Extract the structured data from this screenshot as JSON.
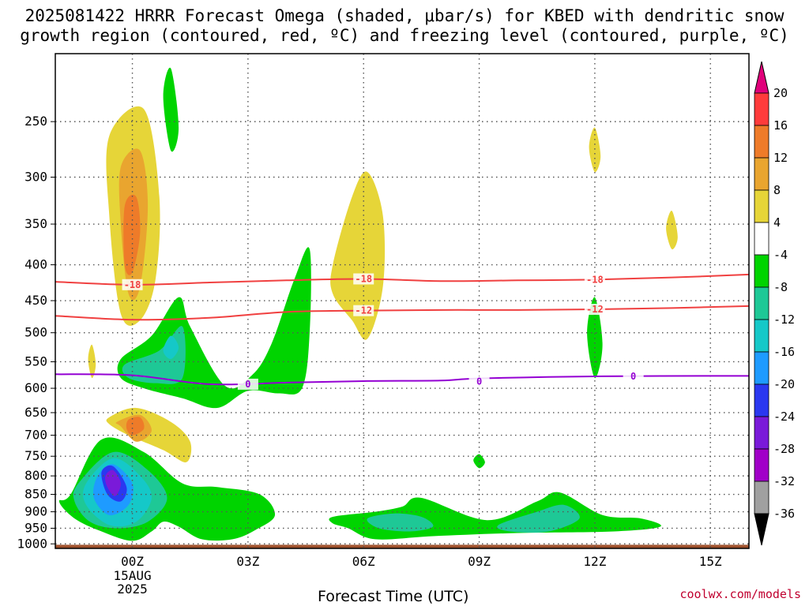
{
  "title": {
    "line1": "2025081422 HRRR Forecast Omega (shaded, μbar/s) for KBED with dendritic snow",
    "line2": "growth region (contoured, red, ºC) and freezing level (contoured, purple, ºC)"
  },
  "credit": "coolwx.com/models",
  "chart_data": {
    "type": "heatmap",
    "title": "2025081422 HRRR Forecast Omega (shaded, μbar/s) for KBED with dendritic snow growth region (contoured, red, ºC) and freezing level (contoured, purple, ºC)",
    "xlabel": "Forecast Time (UTC)",
    "ylabel": "",
    "x_ticks": [
      "00Z",
      "03Z",
      "06Z",
      "09Z",
      "12Z",
      "15Z"
    ],
    "x_tick_hours": [
      2,
      5,
      8,
      11,
      14,
      17
    ],
    "x_date_label": [
      "15AUG",
      "2025"
    ],
    "xlim_hours": [
      0,
      18
    ],
    "y_ticks": [
      250,
      300,
      350,
      400,
      450,
      500,
      550,
      600,
      650,
      700,
      750,
      800,
      850,
      900,
      950,
      1000
    ],
    "ylim_hpa": [
      1015,
      200
    ],
    "y_scale": "log-pressure",
    "grid": "dotted",
    "colorbar": {
      "ticks": [
        "20",
        "16",
        "12",
        "8",
        "4",
        "-4",
        "-8",
        "-12",
        "-16",
        "-20",
        "-24",
        "-28",
        "-32",
        "-36"
      ],
      "bins": [
        {
          "lo": 16,
          "hi": 20,
          "color": "#ff3b3b"
        },
        {
          "lo": 12,
          "hi": 16,
          "color": "#ee7b29"
        },
        {
          "lo": 8,
          "hi": 12,
          "color": "#e9a52f"
        },
        {
          "lo": 4,
          "hi": 8,
          "color": "#e6d538"
        },
        {
          "lo": -4,
          "hi": 4,
          "color": "#ffffff"
        },
        {
          "lo": -8,
          "hi": -4,
          "color": "#00d400"
        },
        {
          "lo": -12,
          "hi": -8,
          "color": "#1ec896"
        },
        {
          "lo": -16,
          "hi": -12,
          "color": "#15c8c8"
        },
        {
          "lo": -20,
          "hi": -16,
          "color": "#1e9bff"
        },
        {
          "lo": -24,
          "hi": -20,
          "color": "#2a38f0"
        },
        {
          "lo": -28,
          "hi": -24,
          "color": "#7a1ad9"
        },
        {
          "lo": -32,
          "hi": -28,
          "color": "#a100c8"
        },
        {
          "lo": -36,
          "hi": -32,
          "color": "#a0a0a0"
        }
      ],
      "over_color": "#e0007a",
      "under_color": "#000000"
    },
    "contours": [
      {
        "name": "-18",
        "color": "#f04040",
        "points": [
          [
            0,
            423
          ],
          [
            2,
            427
          ],
          [
            4,
            424
          ],
          [
            6,
            421
          ],
          [
            8,
            419
          ],
          [
            10,
            422
          ],
          [
            12,
            421
          ],
          [
            14,
            420
          ],
          [
            16,
            417
          ],
          [
            18,
            413
          ]
        ],
        "labels": [
          {
            "h": 2,
            "p": 427
          },
          {
            "h": 8,
            "p": 419
          },
          {
            "h": 14,
            "p": 420
          }
        ]
      },
      {
        "name": "-12",
        "color": "#f04040",
        "points": [
          [
            0,
            473
          ],
          [
            2,
            479
          ],
          [
            4,
            476
          ],
          [
            6,
            467
          ],
          [
            8,
            465
          ],
          [
            10,
            464
          ],
          [
            12,
            464
          ],
          [
            14,
            463
          ],
          [
            16,
            461
          ],
          [
            18,
            458
          ]
        ],
        "labels": [
          {
            "h": 8,
            "p": 465
          },
          {
            "h": 14,
            "p": 463
          }
        ]
      },
      {
        "name": "0",
        "color": "#9400d3",
        "points": [
          [
            0,
            573
          ],
          [
            2,
            575
          ],
          [
            4,
            592
          ],
          [
            6,
            589
          ],
          [
            8,
            586
          ],
          [
            10,
            585
          ],
          [
            11,
            581
          ],
          [
            14,
            577
          ],
          [
            18,
            576
          ]
        ],
        "labels": [
          {
            "h": 5,
            "p": 592
          },
          {
            "h": 11,
            "p": 587
          },
          {
            "h": 15,
            "p": 577
          }
        ]
      }
    ],
    "omega_features": [
      {
        "desc": "upper updraft 00Z",
        "levels": [
          {
            "color": "#e6d538",
            "hours": [
              1.4,
              2.3,
              2.7,
              2.6,
              2.2,
              1.7,
              1.4
            ],
            "hpa": [
              262,
              240,
              320,
              420,
              480,
              470,
              340
            ]
          },
          {
            "color": "#e9a52f",
            "hours": [
              1.7,
              2.2,
              2.4,
              2.2,
              1.9,
              1.7
            ],
            "hpa": [
              290,
              275,
              330,
              430,
              440,
              350
            ]
          },
          {
            "color": "#ee7b29",
            "hours": [
              1.8,
              2.1,
              2.2,
              2.0,
              1.8
            ],
            "hpa": [
              330,
              320,
              360,
              410,
              400
            ]
          }
        ]
      },
      {
        "desc": "mid updraft 00Z",
        "levels": [
          {
            "color": "#e6d538",
            "hours": [
              1.4,
              2.1,
              3.0,
              3.5,
              3.4,
              2.8,
              1.9,
              1.4
            ],
            "hpa": [
              660,
              640,
              670,
              715,
              765,
              735,
              700,
              675
            ]
          },
          {
            "color": "#e9a52f",
            "hours": [
              1.6,
              2.2,
              2.5,
              2.1,
              1.7
            ],
            "hpa": [
              670,
              655,
              690,
              715,
              680
            ]
          },
          {
            "color": "#ee7b29",
            "hours": [
              1.9,
              2.2,
              2.3,
              2.0,
              1.85
            ],
            "hpa": [
              665,
              660,
              685,
              700,
              685
            ]
          }
        ]
      },
      {
        "desc": "low-level subsidence 00Z",
        "levels": [
          {
            "color": "#00d400",
            "hours": [
              0.4,
              1.2,
              2.3,
              3.3,
              4.2,
              5.3,
              5.7,
              5.2,
              4.6,
              3.8,
              3.2,
              2.8,
              2.5,
              2.0,
              1.2,
              0.5,
              0.1
            ],
            "hpa": [
              850,
              710,
              740,
              820,
              830,
              850,
              910,
              955,
              985,
              985,
              945,
              930,
              960,
              990,
              960,
              920,
              870
            ]
          },
          {
            "color": "#1ec896",
            "hours": [
              0.6,
              1.5,
              2.4,
              2.9,
              2.4,
              1.6,
              0.9,
              0.5
            ],
            "hpa": [
              820,
              740,
              785,
              860,
              930,
              950,
              930,
              870
            ]
          },
          {
            "color": "#15c8c8",
            "hours": [
              0.8,
              1.5,
              2.2,
              2.5,
              2.1,
              1.4,
              0.8
            ],
            "hpa": [
              820,
              755,
              800,
              860,
              930,
              940,
              880
            ]
          },
          {
            "color": "#1e9bff",
            "hours": [
              1.1,
              1.5,
              2.0,
              1.9,
              1.4,
              1.0
            ],
            "hpa": [
              800,
              770,
              820,
              880,
              910,
              860
            ]
          },
          {
            "color": "#2a38f0",
            "hours": [
              1.2,
              1.5,
              1.85,
              1.7,
              1.35
            ],
            "hpa": [
              790,
              775,
              830,
              870,
              850
            ]
          },
          {
            "color": "#7a1ad9",
            "hours": [
              1.3,
              1.5,
              1.7,
              1.55,
              1.35
            ],
            "hpa": [
              800,
              785,
              820,
              855,
              830
            ]
          }
        ]
      },
      {
        "desc": "mid-level subsidence 03Z",
        "levels": [
          {
            "color": "#00d400",
            "hours": [
              1.7,
              2.5,
              3.2,
              3.5,
              4.4,
              5.1,
              5.6,
              6.2,
              6.6,
              6.6,
              6.4,
              5.8,
              5.0,
              4.2,
              3.3,
              2.3,
              1.7
            ],
            "hpa": [
              545,
              505,
              445,
              490,
              595,
              575,
              520,
              420,
              380,
              500,
              600,
              610,
              605,
              640,
              620,
              600,
              580
            ]
          },
          {
            "color": "#1ec896",
            "hours": [
              1.8,
              2.7,
              3.3,
              3.3,
              2.6,
              1.9
            ],
            "hpa": [
              555,
              530,
              490,
              580,
              590,
              580
            ]
          },
          {
            "color": "#15c8c8",
            "hours": [
              2.8,
              3.0,
              3.2,
              3.0
            ],
            "hpa": [
              530,
              505,
              525,
              545
            ]
          }
        ]
      },
      {
        "desc": "upper subsidence streak",
        "levels": [
          {
            "color": "#00d400",
            "hours": [
              2.8,
              3.0,
              3.2,
              3.0
            ],
            "hpa": [
              230,
              210,
              255,
              275
            ]
          }
        ]
      },
      {
        "desc": "small updraft 23Z",
        "levels": [
          {
            "color": "#e6d538",
            "hours": [
              0.85,
              0.95,
              1.05,
              0.95
            ],
            "hpa": [
              545,
              520,
              555,
              580
            ]
          }
        ]
      },
      {
        "desc": "updraft 06Z",
        "levels": [
          {
            "color": "#e6d538",
            "hours": [
              7.2,
              7.7,
              8.1,
              8.5,
              8.5,
              8.1,
              7.7,
              7.2
            ],
            "hpa": [
              400,
              320,
              295,
              340,
              430,
              510,
              480,
              440
            ]
          }
        ]
      },
      {
        "desc": "low-level subsidence 06-15Z",
        "levels": [
          {
            "color": "#00d400",
            "hours": [
              7.2,
              8.3,
              9.0,
              9.5,
              11.2,
              12.5,
              13.1,
              14.2,
              15.2,
              15.7,
              14.5,
              12.0,
              9.8,
              8.3,
              7.6,
              7.2
            ],
            "hpa": [
              915,
              900,
              885,
              860,
              925,
              870,
              845,
              910,
              920,
              945,
              960,
              965,
              975,
              985,
              950,
              935
            ]
          },
          {
            "color": "#1ec896",
            "hours": [
              8.1,
              8.8,
              9.5,
              9.8,
              9.2,
              8.4
            ],
            "hpa": [
              920,
              905,
              915,
              945,
              960,
              950
            ]
          },
          {
            "color": "#1ec896",
            "hours": [
              11.5,
              12.5,
              13.2,
              13.6,
              12.8,
              11.8
            ],
            "hpa": [
              940,
              900,
              880,
              920,
              960,
              960
            ]
          }
        ]
      },
      {
        "desc": "small features 12Z",
        "levels": [
          {
            "color": "#00d400",
            "hours": [
              13.8,
              14.0,
              14.2,
              14.0
            ],
            "hpa": [
              500,
              445,
              520,
              580
            ]
          },
          {
            "color": "#e6d538",
            "hours": [
              13.85,
              14.0,
              14.15,
              14.0
            ],
            "hpa": [
              272,
              255,
              280,
              295
            ]
          },
          {
            "color": "#e6d538",
            "hours": [
              15.85,
              16.0,
              16.15,
              16.0
            ],
            "hpa": [
              355,
              335,
              365,
              380
            ]
          },
          {
            "color": "#00d400",
            "hours": [
              10.85,
              11.0,
              11.15,
              11.0
            ],
            "hpa": [
              760,
              745,
              765,
              780
            ]
          }
        ]
      }
    ],
    "ground": {
      "color": "#a0522d",
      "from_hpa": 1003
    }
  }
}
